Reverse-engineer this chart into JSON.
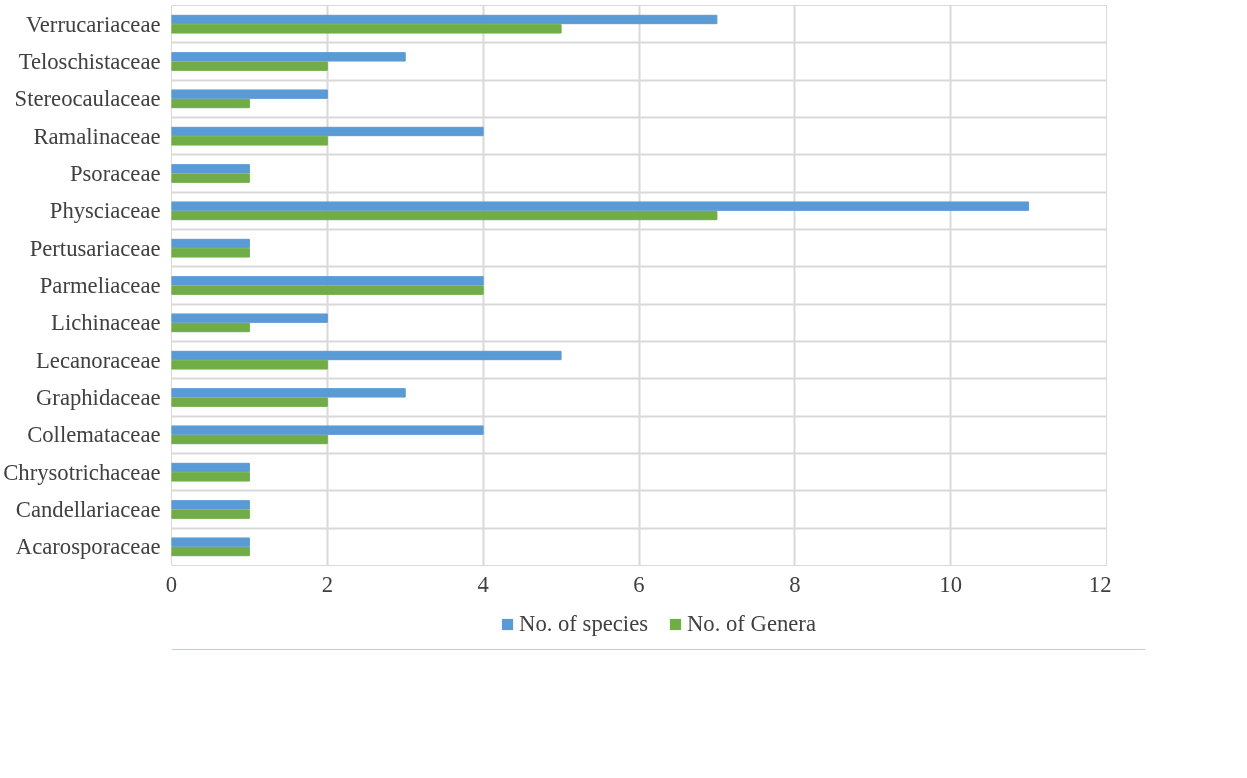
{
  "chart_data": {
    "type": "bar",
    "orientation": "horizontal",
    "categories": [
      "Verrucariaceae",
      "Teloschistaceae",
      "Stereocaulaceae",
      "Ramalinaceae",
      "Psoraceae",
      "Physciaceae",
      "Pertusariaceae",
      "Parmeliaceae",
      "Lichinaceae",
      "Lecanoraceae",
      "Graphidaceae",
      "Collemataceae",
      "Chrysotrichaceae",
      "Candellariaceae",
      "Acarosporaceae"
    ],
    "series": [
      {
        "name": "No. of species",
        "color": "#5b9bd5",
        "values": [
          7,
          3,
          2,
          4,
          1,
          11,
          1,
          4,
          2,
          5,
          3,
          4,
          1,
          1,
          1
        ]
      },
      {
        "name": "No. of Genera",
        "color": "#70ad47",
        "values": [
          5,
          2,
          1,
          2,
          1,
          7,
          1,
          4,
          1,
          2,
          2,
          2,
          1,
          1,
          1
        ]
      }
    ],
    "xlim": [
      0,
      12
    ],
    "xticks": [
      0,
      2,
      4,
      6,
      8,
      10,
      12
    ],
    "grid": true,
    "legend": "bottom"
  }
}
